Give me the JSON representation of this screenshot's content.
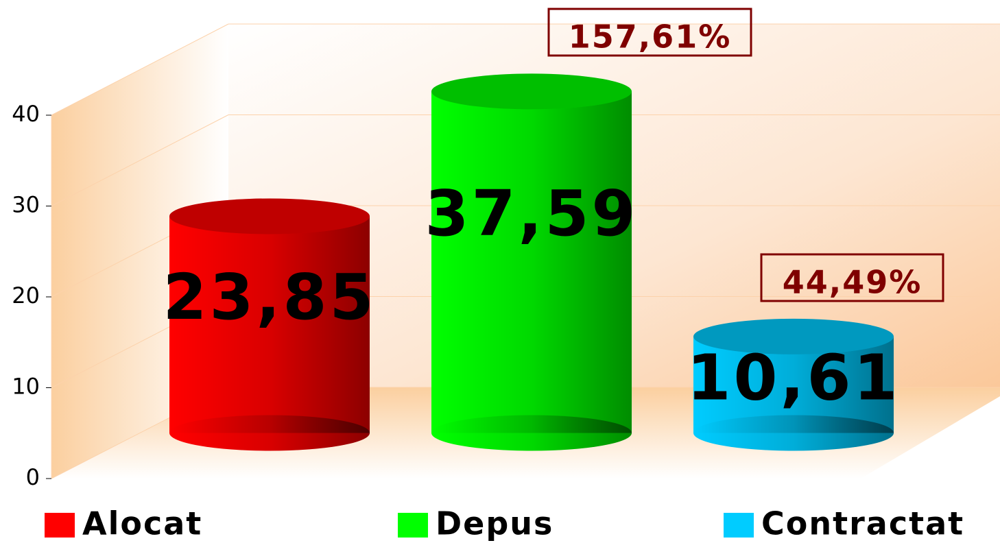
{
  "chart_data": {
    "type": "bar3d",
    "series": [
      {
        "name": "Alocat",
        "color": "#ff0000",
        "values": [
          23.85
        ],
        "value_labels": [
          "23,85"
        ]
      },
      {
        "name": "Depus",
        "color": "#00ff00",
        "values": [
          37.59
        ],
        "value_labels": [
          "37,59"
        ]
      },
      {
        "name": "Contractat",
        "color": "#00ccff",
        "values": [
          10.61
        ],
        "value_labels": [
          "10,61"
        ]
      }
    ],
    "annotations": [
      "157,61%",
      "44,49%"
    ],
    "ylim": [
      0,
      40
    ],
    "yticks": [
      0,
      10,
      20,
      30,
      40
    ],
    "grid": true,
    "legend": "bottom"
  }
}
